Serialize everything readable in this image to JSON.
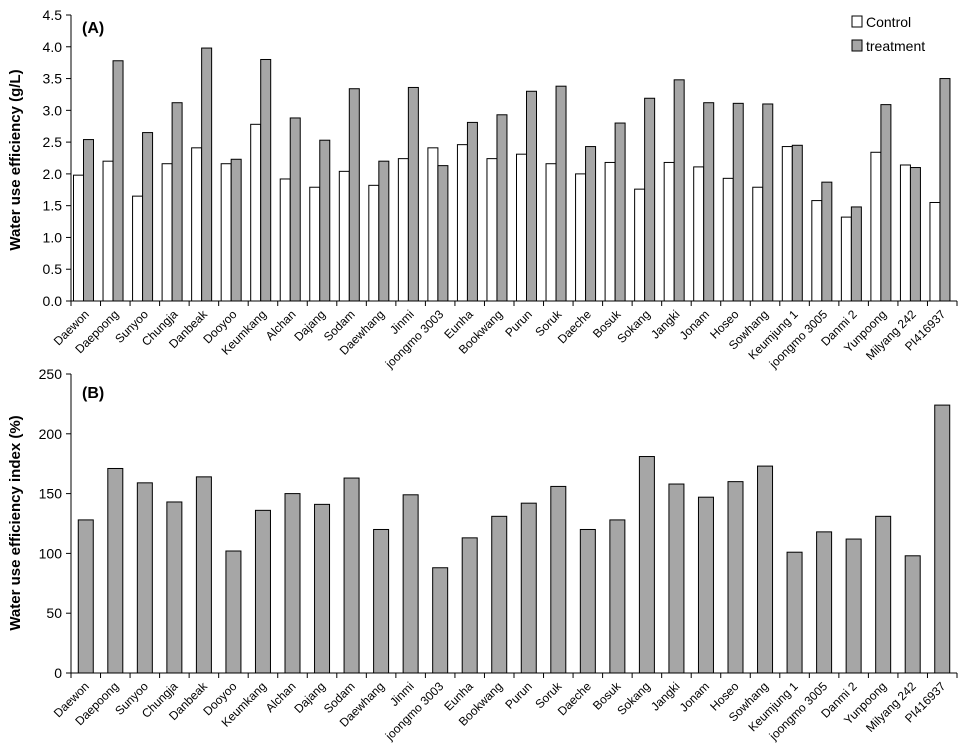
{
  "chart_data": [
    {
      "type": "bar",
      "panel_label": "(A)",
      "title": "",
      "xlabel": "",
      "ylabel": "Water use efficiency (g/L)",
      "ylim": [
        0,
        4.5
      ],
      "yticks": [
        "0.0",
        "0.5",
        "1.0",
        "1.5",
        "2.0",
        "2.5",
        "3.0",
        "3.5",
        "4.0",
        "4.5"
      ],
      "grid": false,
      "legend_position": "top-right",
      "categories": [
        "Daewon",
        "Daepoong",
        "Sunyoo",
        "Chungja",
        "Danbeak",
        "Dooyoo",
        "Keumkang",
        "Alchan",
        "Dajang",
        "Sodam",
        "Daewhang",
        "Jinmi",
        "joongmo 3003",
        "Eunha",
        "Bookwang",
        "Purun",
        "Soruk",
        "Daeche",
        "Bosuk",
        "Sokang",
        "Jangki",
        "Jonam",
        "Hoseo",
        "Sowhang",
        "Keumjung 1",
        "joongmo 3005",
        "Danmi 2",
        "Yunpoong",
        "Milyang 242",
        "PI416937"
      ],
      "series": [
        {
          "name": "Control",
          "color": "#ffffff",
          "values": [
            1.98,
            2.2,
            1.65,
            2.16,
            2.41,
            2.16,
            2.78,
            1.92,
            1.79,
            2.04,
            1.82,
            2.24,
            2.41,
            2.46,
            2.24,
            2.31,
            2.16,
            2.0,
            2.18,
            1.76,
            2.18,
            2.11,
            1.93,
            1.79,
            2.43,
            1.58,
            1.32,
            2.34,
            2.14,
            1.55
          ]
        },
        {
          "name": "treatment",
          "color": "#a6a6a6",
          "values": [
            2.54,
            3.78,
            2.65,
            3.12,
            3.98,
            2.23,
            3.8,
            2.88,
            2.53,
            3.34,
            2.2,
            3.36,
            2.13,
            2.81,
            2.93,
            3.3,
            3.38,
            2.43,
            2.8,
            3.19,
            3.48,
            3.12,
            3.11,
            3.1,
            2.45,
            1.87,
            1.48,
            3.09,
            2.1,
            3.5
          ]
        }
      ]
    },
    {
      "type": "bar",
      "panel_label": "(B)",
      "title": "",
      "xlabel": "",
      "ylabel": "Water use efficiency index (%)",
      "ylim": [
        0,
        250
      ],
      "yticks": [
        "0",
        "50",
        "100",
        "150",
        "200",
        "250"
      ],
      "grid": false,
      "categories": [
        "Daewon",
        "Daepoong",
        "Sunyoo",
        "Chungja",
        "Danbeak",
        "Dooyoo",
        "Keumkang",
        "Alchan",
        "Dajang",
        "Sodam",
        "Daewhang",
        "Jinmi",
        "joongmo 3003",
        "Eunha",
        "Bookwang",
        "Purun",
        "Soruk",
        "Daeche",
        "Bosuk",
        "Sokang",
        "Jangki",
        "Jonam",
        "Hoseo",
        "Sowhang",
        "Keumjung 1",
        "joongmo 3005",
        "Danmi 2",
        "Yunpoong",
        "Milyang 242",
        "PI416937"
      ],
      "series": [
        {
          "color": "#a6a6a6",
          "values": [
            128,
            171,
            159,
            143,
            164,
            102,
            136,
            150,
            141,
            163,
            120,
            149,
            88,
            113,
            131,
            142,
            156,
            120,
            128,
            181,
            158,
            147,
            160,
            173,
            101,
            118,
            112,
            131,
            98,
            224
          ]
        }
      ]
    }
  ]
}
